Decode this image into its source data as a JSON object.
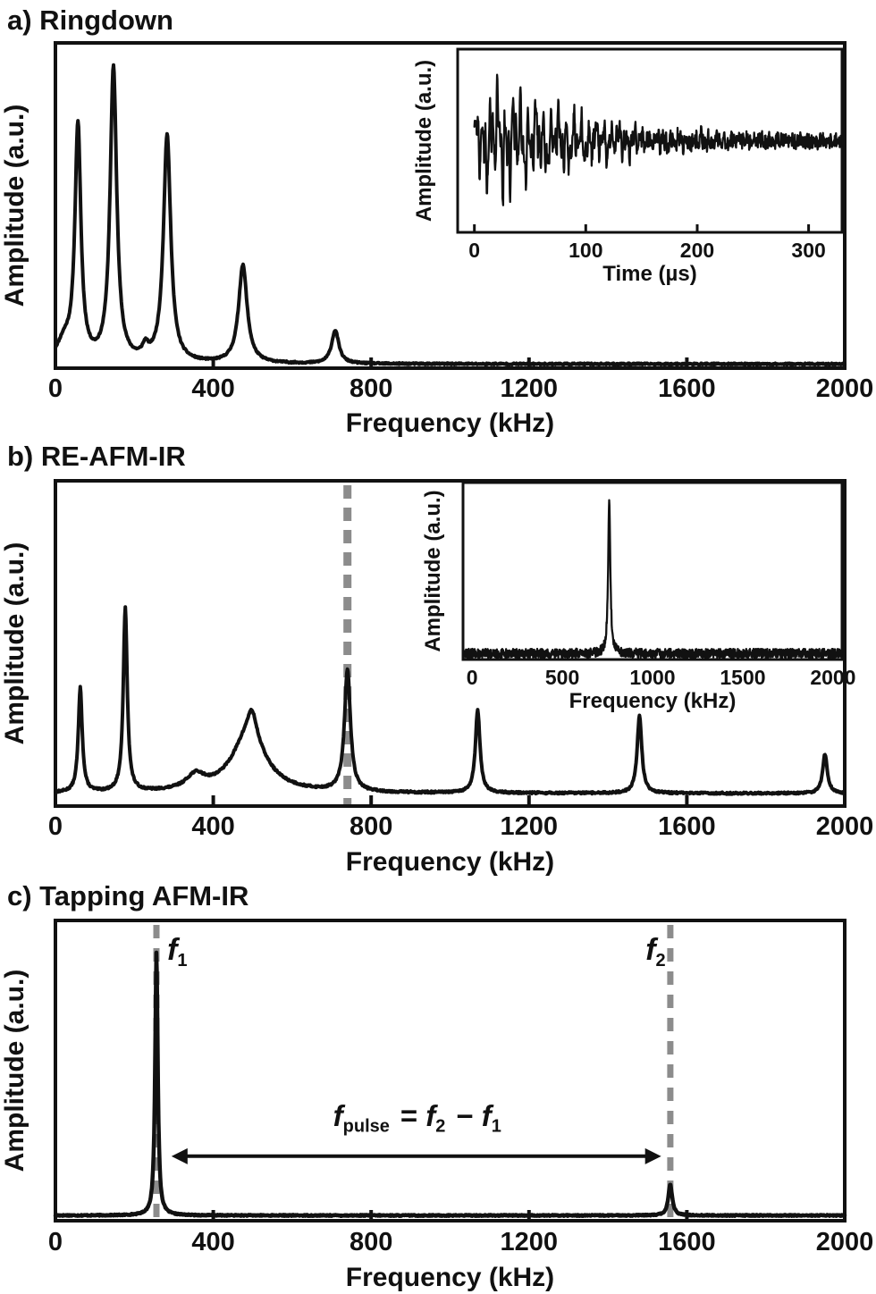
{
  "figure": {
    "background": "#ffffff",
    "ink_color": "#111111",
    "dash_color": "#8c8c8c"
  },
  "chart_data": [
    {
      "id": "a",
      "type": "line",
      "title": "a) Ringdown",
      "xlabel": "Frequency (kHz)",
      "ylabel": "Amplitude (a.u.)",
      "xlim": [
        0,
        2000
      ],
      "xticks": [
        0,
        400,
        800,
        1200,
        1600,
        2000
      ],
      "ylim": [
        0,
        1
      ],
      "grid": false,
      "baseline": 0.013,
      "peaks": [
        {
          "center_khz": 22,
          "height": 0.06,
          "hwhm_khz": 22
        },
        {
          "center_khz": 57,
          "height": 0.74,
          "hwhm_khz": 9
        },
        {
          "center_khz": 147,
          "height": 0.93,
          "hwhm_khz": 10
        },
        {
          "center_khz": 228,
          "height": 0.035,
          "hwhm_khz": 9
        },
        {
          "center_khz": 283,
          "height": 0.72,
          "hwhm_khz": 11
        },
        {
          "center_khz": 475,
          "height": 0.31,
          "hwhm_khz": 13
        },
        {
          "center_khz": 709,
          "height": 0.105,
          "hwhm_khz": 11
        }
      ],
      "inset": {
        "type": "line",
        "kind": "ringdown",
        "xlabel": "Time (µs)",
        "ylabel": "Amplitude (a.u.)",
        "xlim": [
          -15,
          330
        ],
        "xticks": [
          0,
          100,
          200,
          300
        ],
        "rise_us": 22,
        "decay_tau_us": 85,
        "noise_amp": 0.18,
        "components": [
          {
            "freq_cyc_per_us": 0.055,
            "amp": 0.55,
            "phase": 1.2
          },
          {
            "freq_cyc_per_us": 0.148,
            "amp": 1.0,
            "phase": 0.4
          },
          {
            "freq_cyc_per_us": 0.29,
            "amp": 0.8,
            "phase": 2.1
          },
          {
            "freq_cyc_per_us": 0.475,
            "amp": 0.5,
            "phase": 3.6
          }
        ]
      }
    },
    {
      "id": "b",
      "type": "line",
      "title": "b) RE-AFM-IR",
      "xlabel": "Frequency (kHz)",
      "ylabel": "Amplitude (a.u.)",
      "xlim": [
        0,
        2000
      ],
      "xticks": [
        0,
        400,
        800,
        1200,
        1600,
        2000
      ],
      "ylim": [
        0,
        1
      ],
      "grid": false,
      "baseline": 0.04,
      "dashed_lines_khz": [
        740
      ],
      "peaks": [
        {
          "center_khz": 63,
          "height": 0.33,
          "hwhm_khz": 6
        },
        {
          "center_khz": 177,
          "height": 0.58,
          "hwhm_khz": 6
        },
        {
          "center_khz": 355,
          "height": 0.045,
          "hwhm_khz": 28
        },
        {
          "center_khz": 490,
          "height": 0.185,
          "hwhm_khz": 52
        },
        {
          "center_khz": 498,
          "height": 0.08,
          "hwhm_khz": 14
        },
        {
          "center_khz": 740,
          "height": 0.385,
          "hwhm_khz": 9
        },
        {
          "center_khz": 1070,
          "height": 0.26,
          "hwhm_khz": 7
        },
        {
          "center_khz": 1480,
          "height": 0.245,
          "hwhm_khz": 7
        },
        {
          "center_khz": 1950,
          "height": 0.125,
          "hwhm_khz": 7
        }
      ],
      "inset": {
        "type": "line",
        "kind": "spectrum",
        "xlabel": "Frequency (kHz)",
        "ylabel": "Amplitude (a.u.)",
        "xlim": [
          -50,
          2050
        ],
        "xticks": [
          0,
          500,
          1000,
          1500,
          2000
        ],
        "baseline": 0.035,
        "noise_amp": 0.055,
        "peaks": [
          {
            "center_khz": 760,
            "height": 0.9,
            "hwhm_khz": 7
          }
        ]
      }
    },
    {
      "id": "c",
      "type": "line",
      "title": "c) Tapping AFM-IR",
      "xlabel": "Frequency (kHz)",
      "ylabel": "Amplitude (a.u.)",
      "xlim": [
        0,
        2000
      ],
      "xticks": [
        0,
        400,
        800,
        1200,
        1600,
        2000
      ],
      "ylim": [
        0,
        1
      ],
      "grid": false,
      "baseline": 0.018,
      "dashed_lines_khz": [
        256,
        1558
      ],
      "peaks": [
        {
          "center_khz": 256,
          "height": 0.9,
          "hwhm_khz": 4
        },
        {
          "center_khz": 1558,
          "height": 0.105,
          "hwhm_khz": 6
        }
      ],
      "annotations": {
        "peak_labels": [
          {
            "tokens": [
              {
                "t": "f",
                "i": true,
                "sub": "1"
              }
            ],
            "x_khz": 312,
            "y_frac": 0.89
          },
          {
            "tokens": [
              {
                "t": "f",
                "i": true,
                "sub": "2"
              }
            ],
            "x_khz": 1524,
            "y_frac": 0.89
          }
        ],
        "arrow": {
          "from_khz": 294,
          "to_khz": 1535,
          "y_frac": 0.22
        },
        "formula": {
          "tokens": [
            {
              "t": "f",
              "i": true,
              "sub": "pulse"
            },
            {
              "t": " = "
            },
            {
              "t": "f",
              "i": true,
              "sub": "2"
            },
            {
              "t": " − "
            },
            {
              "t": "f",
              "i": true,
              "sub": "1"
            }
          ],
          "x_khz": 920,
          "y_frac": 0.323
        }
      }
    }
  ]
}
